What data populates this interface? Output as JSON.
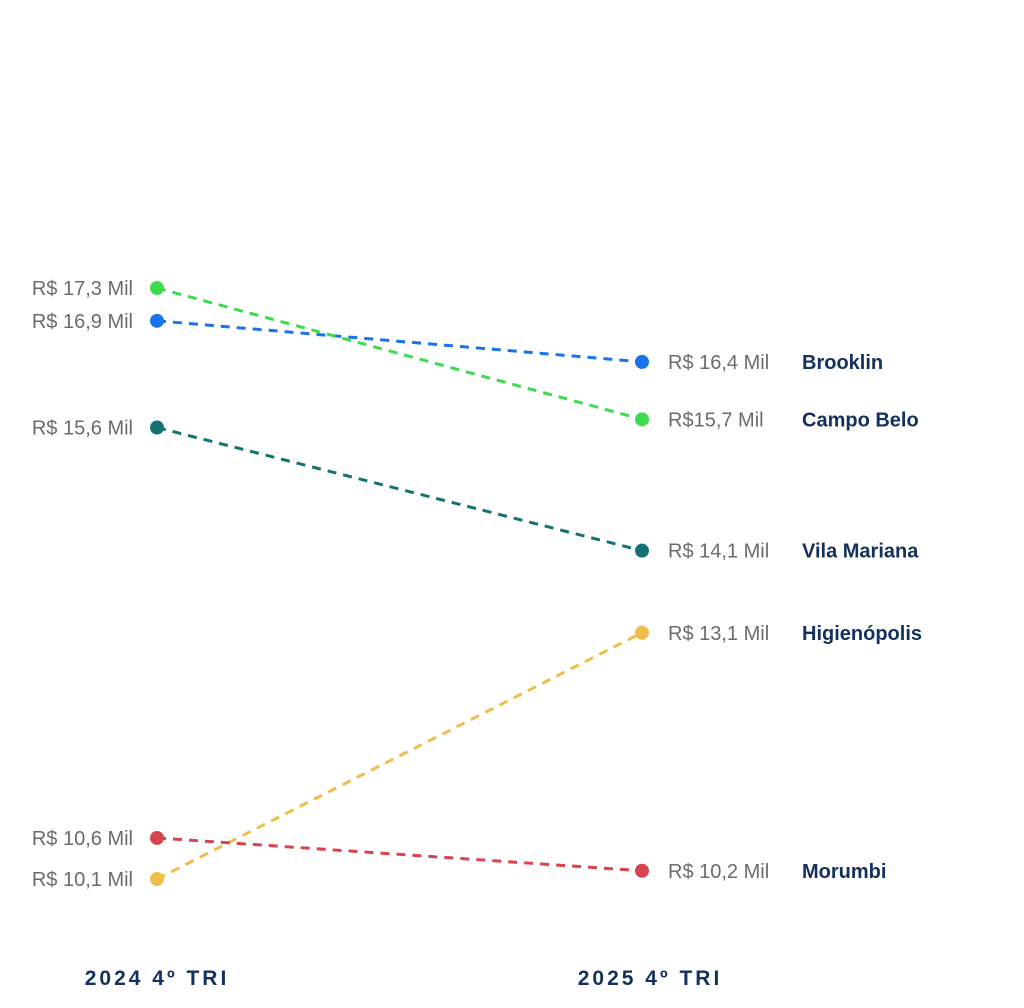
{
  "chart_data": {
    "type": "line",
    "title": "",
    "x": [
      "2024 4º TRI",
      "2025 4º TRI"
    ],
    "series": [
      {
        "name": "Brooklin",
        "values": [
          16.9,
          16.4
        ],
        "labels": [
          "R$ 16,9 Mil",
          "R$ 16,4 Mil"
        ],
        "color": "#1a73e8"
      },
      {
        "name": "Campo Belo",
        "values": [
          17.3,
          15.7
        ],
        "labels": [
          "R$ 17,3 Mil",
          "R$15,7 Mil"
        ],
        "color": "#3ddc4e"
      },
      {
        "name": "Vila Mariana",
        "values": [
          15.6,
          14.1
        ],
        "labels": [
          "R$ 15,6 Mil",
          "R$ 14,1 Mil"
        ],
        "color": "#167272"
      },
      {
        "name": "Higienópolis",
        "values": [
          10.1,
          13.1
        ],
        "labels": [
          "R$ 10,1 Mil",
          "R$ 13,1 Mil"
        ],
        "color": "#f0bd4a"
      },
      {
        "name": "Morumbi",
        "values": [
          10.6,
          10.2
        ],
        "labels": [
          "R$ 10,6 Mil",
          "R$ 10,2 Mil"
        ],
        "color": "#d9434f"
      }
    ],
    "xlabel": "",
    "ylabel": "",
    "ylim": [
      9.5,
      17.3
    ],
    "grid": false,
    "legend": "none"
  }
}
